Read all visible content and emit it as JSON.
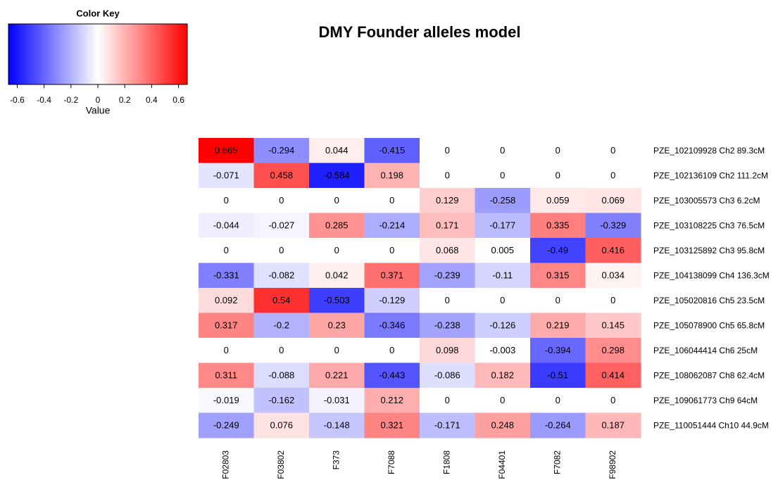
{
  "chart_data": {
    "type": "heatmap",
    "title": "DMY Founder alleles model",
    "key_title": "Color Key",
    "key_xlabel": "Value",
    "zlim": [
      -0.665,
      0.665
    ],
    "key_ticks": [
      -0.6,
      -0.4,
      -0.2,
      0,
      0.2,
      0.4,
      0.6
    ],
    "colors": [
      "#0000ff",
      "#ffffff",
      "#ff0000"
    ],
    "columns": [
      "F02803",
      "F03802",
      "F373",
      "F7088",
      "F1808",
      "F04401",
      "F7082",
      "F98902"
    ],
    "rows": [
      "PZE_102109928 Ch2 89.3cM",
      "PZE_102136109 Ch2 111.2cM",
      "PZE_103005573 Ch3 6.2cM",
      "PZE_103108225 Ch3 76.5cM",
      "PZE_103125892 Ch3 95.8cM",
      "PZE_104138099 Ch4 136.3cM",
      "PZE_105020816 Ch5 23.5cM",
      "PZE_105078900 Ch5 65.8cM",
      "PZE_106044414 Ch6 25cM",
      "PZE_108062087 Ch8 62.4cM",
      "PZE_109061773 Ch9 64cM",
      "PZE_110051444 Ch10 44.9cM"
    ],
    "values": [
      [
        0.665,
        -0.294,
        0.044,
        -0.415,
        0,
        0,
        0,
        0
      ],
      [
        -0.071,
        0.458,
        -0.584,
        0.198,
        0,
        0,
        0,
        0
      ],
      [
        0,
        0,
        0,
        0,
        0.129,
        -0.258,
        0.059,
        0.069
      ],
      [
        -0.044,
        -0.027,
        0.285,
        -0.214,
        0.171,
        -0.177,
        0.335,
        -0.329
      ],
      [
        0,
        0,
        0,
        0,
        0.068,
        0.005,
        -0.49,
        0.416
      ],
      [
        -0.331,
        -0.082,
        0.042,
        0.371,
        -0.239,
        -0.11,
        0.315,
        0.034
      ],
      [
        0.092,
        0.54,
        -0.503,
        -0.129,
        0,
        0,
        0,
        0
      ],
      [
        0.317,
        -0.2,
        0.23,
        -0.346,
        -0.238,
        -0.126,
        0.219,
        0.145
      ],
      [
        0,
        0,
        0,
        0,
        0.098,
        -0.003,
        -0.394,
        0.298
      ],
      [
        0.311,
        -0.088,
        0.221,
        -0.443,
        -0.086,
        0.182,
        -0.51,
        0.414
      ],
      [
        -0.019,
        -0.162,
        -0.031,
        0.212,
        0,
        0,
        0,
        0
      ],
      [
        -0.249,
        0.076,
        -0.148,
        0.321,
        -0.171,
        0.248,
        -0.264,
        0.187
      ]
    ]
  }
}
